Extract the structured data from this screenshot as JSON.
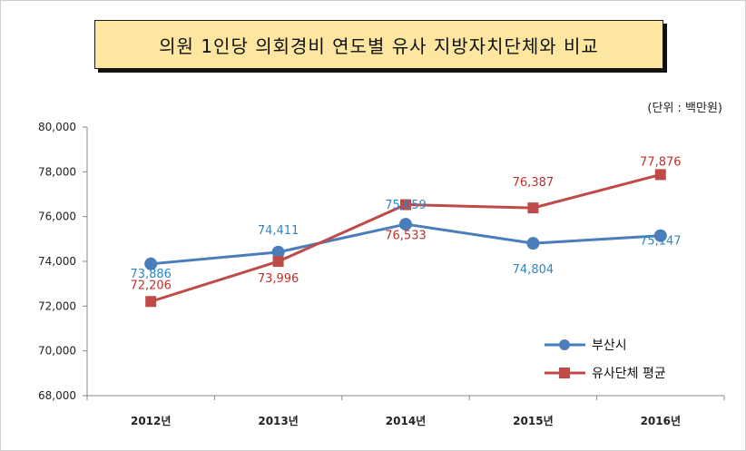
{
  "chart_data": {
    "type": "line",
    "title": "의원 1인당 의회경비 연도별 유사 지방자치단체와 비교",
    "unit_note": "(단위 : 백만원)",
    "categories": [
      "2012년",
      "2013년",
      "2014년",
      "2015년",
      "2016년"
    ],
    "ylim": [
      68000,
      80000
    ],
    "yticks": [
      "68,000",
      "70,000",
      "72,000",
      "74,000",
      "76,000",
      "78,000",
      "80,000"
    ],
    "ytick_values": [
      68000,
      70000,
      72000,
      74000,
      76000,
      78000,
      80000
    ],
    "grid": false,
    "legend_position": "bottom-right",
    "series": [
      {
        "name": "부산시",
        "color": "#4a7ebb",
        "label_color": "#2e86c8",
        "marker": "circle",
        "values": [
          73886,
          74411,
          75659,
          74804,
          75147
        ],
        "labels": [
          "73,886",
          "74,411",
          "75,659",
          "74,804",
          "75,147"
        ]
      },
      {
        "name": "유사단체 평균",
        "color": "#be4b48",
        "label_color": "#c0302c",
        "marker": "square",
        "values": [
          72206,
          73996,
          76533,
          76387,
          77876
        ],
        "labels": [
          "72,206",
          "73,996",
          "76,533",
          "76,387",
          "77,876"
        ]
      }
    ]
  }
}
